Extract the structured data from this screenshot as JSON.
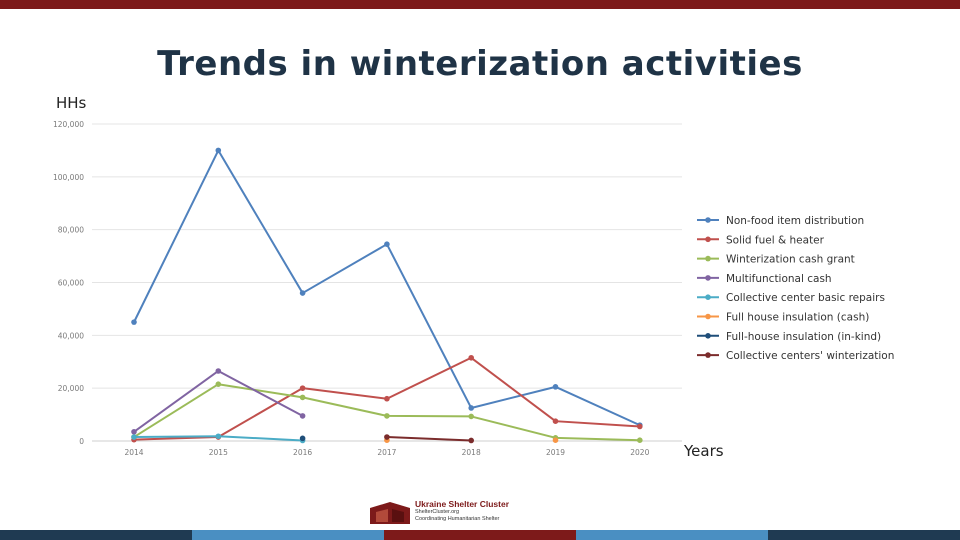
{
  "slide": {
    "title": "Trends in winterization activities",
    "y_unit_label": "HHs",
    "x_unit_label": "Years"
  },
  "colors": {
    "top_bar": "#7d1a1a",
    "title": "#1f3346",
    "bottom_segments": [
      "#1f3a52",
      "#4a8fc2",
      "#7d1a1a",
      "#4a8fc2",
      "#1f3a52"
    ]
  },
  "footer": {
    "org_name": "Ukraine Shelter Cluster",
    "website": "ShelterCluster.org",
    "tagline": "Coordinating Humanitarian Shelter"
  },
  "chart_data": {
    "type": "line",
    "categories": [
      "2014",
      "2015",
      "2016",
      "2017",
      "2018",
      "2019",
      "2020"
    ],
    "y_ticks": [
      "0",
      "20,000",
      "40,000",
      "60,000",
      "80,000",
      "100,000",
      "120,000"
    ],
    "ylim": [
      0,
      120000
    ],
    "grid": true,
    "legend_position": "right",
    "series": [
      {
        "name": "Non-food item distribution",
        "color": "#4f81bd",
        "values": [
          45000,
          110000,
          56000,
          74500,
          12500,
          20500,
          6000
        ]
      },
      {
        "name": "Solid fuel & heater",
        "color": "#c0504d",
        "values": [
          500,
          1500,
          20000,
          16000,
          31500,
          7500,
          5500
        ]
      },
      {
        "name": "Winterization cash grant",
        "color": "#9bbb59",
        "values": [
          1500,
          21500,
          16500,
          9500,
          9300,
          1200,
          300
        ]
      },
      {
        "name": "Multifunctional cash",
        "color": "#8064a2",
        "values": [
          3500,
          26500,
          9500,
          null,
          null,
          null,
          null
        ]
      },
      {
        "name": "Collective center basic repairs",
        "color": "#4bacc6",
        "values": [
          1500,
          1800,
          200,
          null,
          null,
          null,
          null
        ]
      },
      {
        "name": "Full house insulation (cash)",
        "color": "#f79646",
        "values": [
          null,
          null,
          null,
          300,
          null,
          300,
          null
        ]
      },
      {
        "name": "Full-house insulation (in-kind)",
        "color": "#1f4e79",
        "values": [
          null,
          null,
          1000,
          null,
          null,
          null,
          null
        ]
      },
      {
        "name": "Collective centers' winterization",
        "color": "#7b2c2c",
        "values": [
          null,
          null,
          null,
          1500,
          200,
          null,
          null
        ]
      }
    ]
  }
}
